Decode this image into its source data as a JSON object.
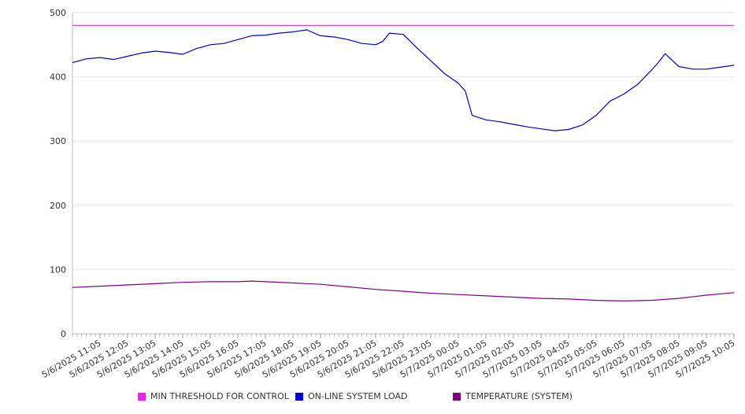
{
  "chart_data": {
    "type": "line",
    "title": "",
    "xlabel": "",
    "ylabel": "",
    "ylim": [
      0,
      500
    ],
    "yticks": [
      0,
      100,
      200,
      300,
      400,
      500
    ],
    "grid": "horizontal",
    "legend_position": "bottom",
    "x_tick_labels": [
      "5/6/2025 11:05",
      "5/6/2025 12:05",
      "5/6/2025 13:05",
      "5/6/2025 14:05",
      "5/6/2025 15:05",
      "5/6/2025 16:05",
      "5/6/2025 17:05",
      "5/6/2025 18:05",
      "5/6/2025 19:05",
      "5/6/2025 20:05",
      "5/6/2025 21:05",
      "5/6/2025 22:05",
      "5/6/2025 23:05",
      "5/7/2025 00:05",
      "5/7/2025 01:05",
      "5/7/2025 02:05",
      "5/7/2025 03:05",
      "5/7/2025 04:05",
      "5/7/2025 05:05",
      "5/7/2025 06:05",
      "5/7/2025 07:05",
      "5/7/2025 08:05",
      "5/7/2025 09:05",
      "5/7/2025 10:05"
    ],
    "x_start": "5/6/2025 10:05",
    "x_end": "5/7/2025 10:05",
    "series": [
      {
        "name": "MIN THRESHOLD FOR CONTROL",
        "color": "#cc33cc",
        "x": [
          "5/6/2025 10:05",
          "5/7/2025 10:05"
        ],
        "values": [
          480,
          480
        ]
      },
      {
        "name": "ON-LINE SYSTEM LOAD",
        "color": "#0000cc",
        "x": [
          "5/6/2025 10:05",
          "5/6/2025 10:35",
          "5/6/2025 11:05",
          "5/6/2025 11:35",
          "5/6/2025 12:05",
          "5/6/2025 12:35",
          "5/6/2025 13:05",
          "5/6/2025 13:35",
          "5/6/2025 14:05",
          "5/6/2025 14:35",
          "5/6/2025 15:05",
          "5/6/2025 15:35",
          "5/6/2025 16:05",
          "5/6/2025 16:35",
          "5/6/2025 17:05",
          "5/6/2025 17:35",
          "5/6/2025 18:05",
          "5/6/2025 18:35",
          "5/6/2025 19:05",
          "5/6/2025 19:35",
          "5/6/2025 20:05",
          "5/6/2025 20:35",
          "5/6/2025 21:05",
          "5/6/2025 21:20",
          "5/6/2025 21:35",
          "5/6/2025 22:05",
          "5/6/2025 22:35",
          "5/6/2025 23:05",
          "5/6/2025 23:35",
          "5/7/2025 00:05",
          "5/7/2025 00:20",
          "5/7/2025 00:35",
          "5/7/2025 01:05",
          "5/7/2025 01:35",
          "5/7/2025 02:05",
          "5/7/2025 02:35",
          "5/7/2025 03:05",
          "5/7/2025 03:35",
          "5/7/2025 04:05",
          "5/7/2025 04:35",
          "5/7/2025 05:05",
          "5/7/2025 05:35",
          "5/7/2025 06:05",
          "5/7/2025 06:35",
          "5/7/2025 07:05",
          "5/7/2025 07:20",
          "5/7/2025 07:35",
          "5/7/2025 08:05",
          "5/7/2025 08:35",
          "5/7/2025 09:05",
          "5/7/2025 09:35",
          "5/7/2025 10:05"
        ],
        "values": [
          422,
          428,
          430,
          427,
          432,
          437,
          440,
          438,
          435,
          444,
          450,
          452,
          458,
          464,
          465,
          468,
          470,
          473,
          464,
          462,
          458,
          452,
          450,
          455,
          468,
          466,
          445,
          425,
          405,
          390,
          378,
          340,
          333,
          330,
          326,
          322,
          319,
          316,
          318,
          325,
          340,
          362,
          373,
          388,
          410,
          422,
          436,
          416,
          412,
          412,
          415,
          418
        ]
      },
      {
        "name": "TEMPERATURE (SYSTEM)",
        "color": "#800080",
        "x": [
          "5/6/2025 10:05",
          "5/6/2025 11:05",
          "5/6/2025 12:05",
          "5/6/2025 13:05",
          "5/6/2025 14:05",
          "5/6/2025 15:05",
          "5/6/2025 16:05",
          "5/6/2025 16:35",
          "5/6/2025 17:05",
          "5/6/2025 18:05",
          "5/6/2025 19:05",
          "5/6/2025 20:05",
          "5/6/2025 21:05",
          "5/6/2025 22:05",
          "5/6/2025 23:05",
          "5/7/2025 00:05",
          "5/7/2025 01:05",
          "5/7/2025 02:05",
          "5/7/2025 03:05",
          "5/7/2025 04:05",
          "5/7/2025 05:05",
          "5/7/2025 06:05",
          "5/7/2025 07:05",
          "5/7/2025 08:05",
          "5/7/2025 09:05",
          "5/7/2025 10:05"
        ],
        "values": [
          72,
          74,
          76,
          78,
          80,
          81,
          81,
          82,
          81,
          79,
          77,
          73,
          69,
          66,
          63,
          61,
          59,
          57,
          55,
          54,
          52,
          51,
          52,
          55,
          60,
          64
        ]
      }
    ]
  }
}
